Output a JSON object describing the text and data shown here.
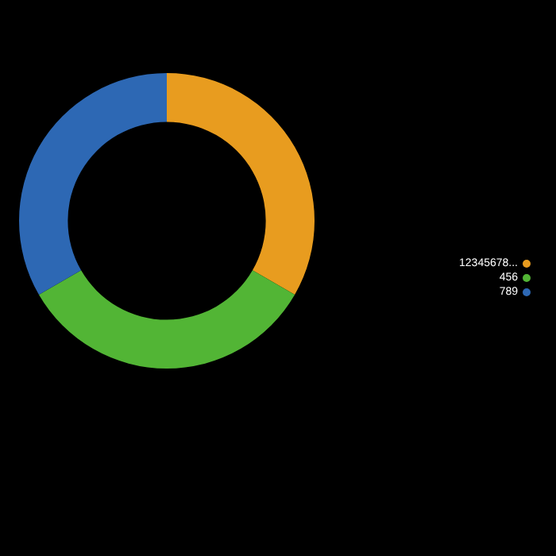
{
  "chart_data": {
    "type": "donut",
    "categories": [
      "12345678...",
      "456",
      "789"
    ],
    "values": [
      33.33,
      33.33,
      33.34
    ],
    "colors": [
      "#e89c1f",
      "#52b535",
      "#2d68b4"
    ],
    "legend": "right"
  }
}
